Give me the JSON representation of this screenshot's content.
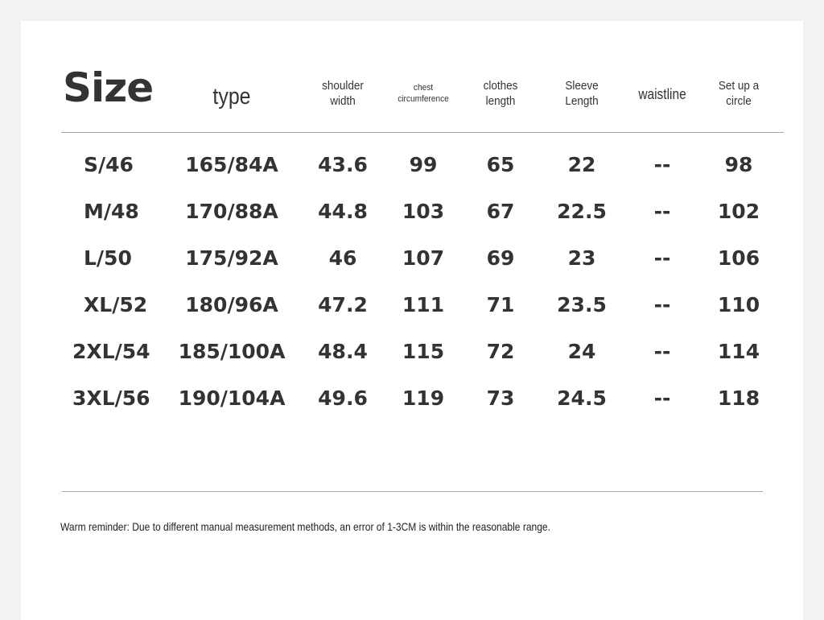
{
  "table": {
    "headers": {
      "size": "Size",
      "type": "type",
      "shoulder": [
        "shoulder",
        "width"
      ],
      "chest": [
        "chest",
        "circumference"
      ],
      "clothes": [
        "clothes",
        "length"
      ],
      "sleeve": [
        "Sleeve",
        "Length"
      ],
      "waist": "waistline",
      "circle": [
        "Set up a",
        "circle"
      ]
    },
    "rows": [
      [
        "S/46",
        "165/84A",
        "43.6",
        "99",
        "65",
        "22",
        "--",
        "98"
      ],
      [
        "M/48",
        "170/88A",
        "44.8",
        "103",
        "67",
        "22.5",
        "--",
        "102"
      ],
      [
        "L/50",
        "175/92A",
        "46",
        "107",
        "69",
        "23",
        "--",
        "106"
      ],
      [
        "XL/52",
        "180/96A",
        "47.2",
        "111",
        "71",
        "23.5",
        "--",
        "110"
      ],
      [
        "2XL/54",
        "185/100A",
        "48.4",
        "115",
        "72",
        "24",
        "--",
        "114"
      ],
      [
        "3XL/56",
        "190/104A",
        "49.6",
        "119",
        "73",
        "24.5",
        "--",
        "118"
      ]
    ]
  },
  "note": "Warm reminder: Due to different manual measurement methods, an error of 1-3CM is within the reasonable range."
}
